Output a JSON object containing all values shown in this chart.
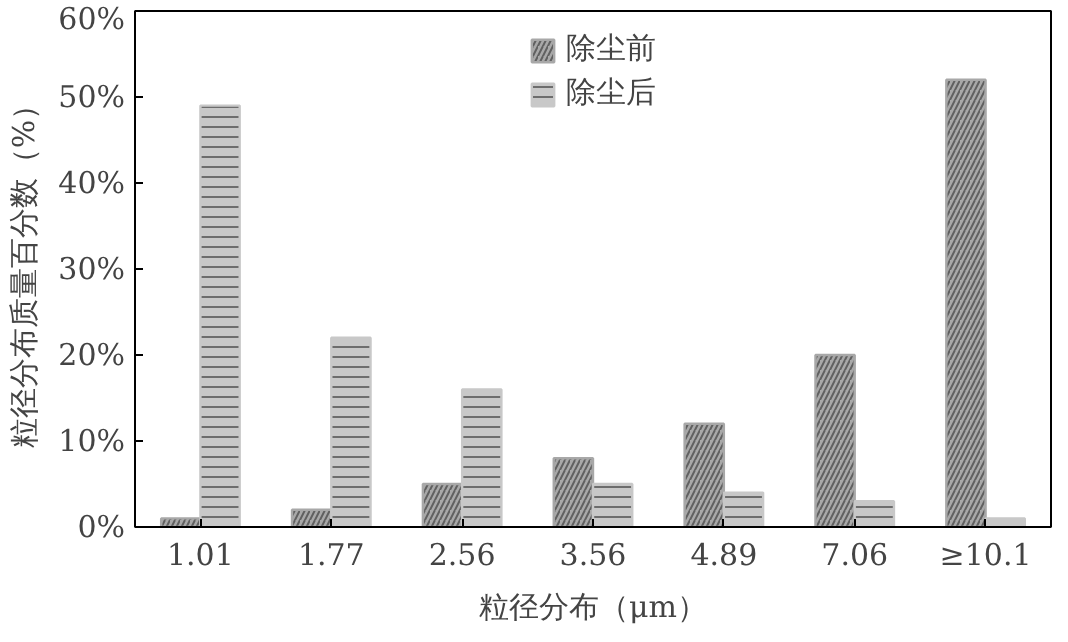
{
  "chart_data": {
    "type": "bar",
    "xlabel": "粒径分布（μm）",
    "ylabel": "粒径分布质量百分数（%）",
    "categories": [
      "1.01",
      "1.77",
      "2.56",
      "3.56",
      "4.89",
      "7.06",
      "≥10.1"
    ],
    "series": [
      {
        "name": "除尘前",
        "color": "#a8a8a8",
        "values": [
          1,
          2,
          5,
          8,
          12,
          20,
          52
        ]
      },
      {
        "name": "除尘后",
        "color": "#c8c8c8",
        "values": [
          49,
          22,
          16,
          5,
          4,
          3,
          1
        ]
      }
    ],
    "ylim": [
      0,
      60
    ],
    "yticks": [
      {
        "value": 0,
        "label": "0%"
      },
      {
        "value": 10,
        "label": "10%"
      },
      {
        "value": 20,
        "label": "20%"
      },
      {
        "value": 30,
        "label": "30%"
      },
      {
        "value": 40,
        "label": "40%"
      },
      {
        "value": 50,
        "label": "50%"
      },
      {
        "value": 60,
        "label": "60%"
      }
    ],
    "grid": false,
    "legend": "top"
  }
}
